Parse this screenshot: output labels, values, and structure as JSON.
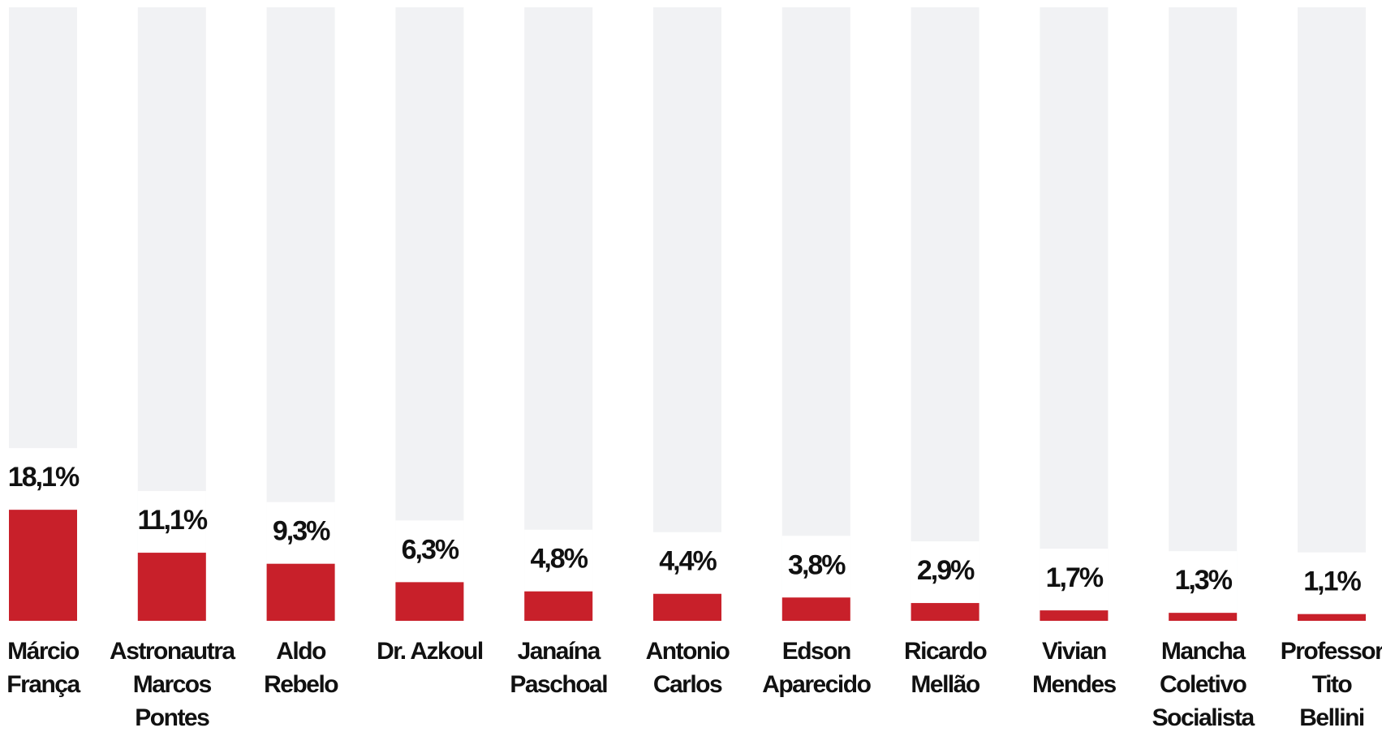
{
  "chart_data": {
    "type": "bar",
    "categories": [
      [
        "Márcio",
        "França"
      ],
      [
        "Astronautra",
        "Marcos",
        "Pontes"
      ],
      [
        "Aldo",
        "Rebelo"
      ],
      [
        "Dr. Azkoul"
      ],
      [
        "Janaína",
        "Paschoal"
      ],
      [
        "Antonio",
        "Carlos"
      ],
      [
        "Edson",
        "Aparecido"
      ],
      [
        "Ricardo",
        "Mellão"
      ],
      [
        "Vivian",
        "Mendes"
      ],
      [
        "Mancha",
        "Coletivo",
        "Socialista"
      ],
      [
        "Professor",
        "Tito",
        "Bellini"
      ]
    ],
    "values": [
      18.1,
      11.1,
      9.3,
      6.3,
      4.8,
      4.4,
      3.8,
      2.9,
      1.7,
      1.3,
      1.1
    ],
    "value_labels": [
      "18,1%",
      "11,1%",
      "9,3%",
      "6,3%",
      "4,8%",
      "4,4%",
      "3,8%",
      "2,9%",
      "1,7%",
      "1,3%",
      "1,1%"
    ],
    "color": "#c8202a",
    "track_color": "#f1f2f4",
    "ylim": [
      0,
      100
    ]
  }
}
